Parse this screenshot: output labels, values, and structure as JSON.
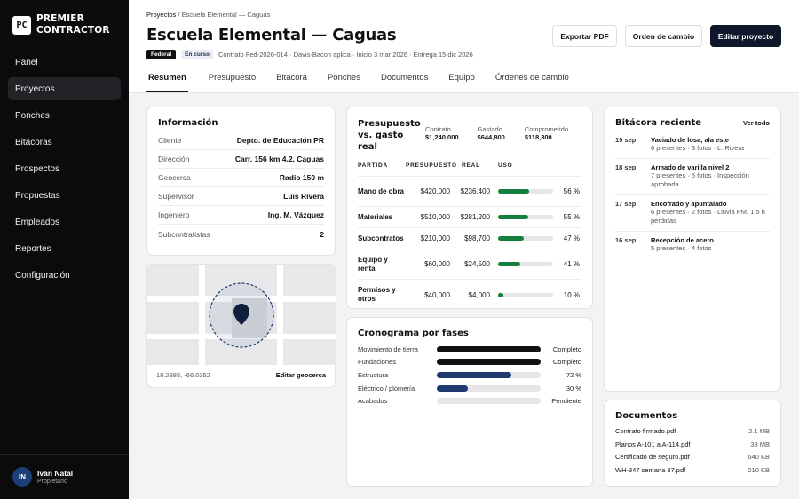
{
  "brand": {
    "logo": "PC",
    "line1": "PREMIER",
    "line2": "CONTRACTOR"
  },
  "sidebar": {
    "items": [
      {
        "label": "Panel"
      },
      {
        "label": "Proyectos",
        "active": true
      },
      {
        "label": "Ponches"
      },
      {
        "label": "Bitácoras"
      },
      {
        "label": "Prospectos"
      },
      {
        "label": "Propuestas"
      },
      {
        "label": "Empleados"
      },
      {
        "label": "Reportes"
      },
      {
        "label": "Configuración"
      }
    ],
    "user": {
      "initials": "IN",
      "name": "Iván Natal",
      "role": "Propietario"
    }
  },
  "header": {
    "breadcrumb": {
      "root": "Proyectos",
      "sep": " / ",
      "current": "Escuela Elemental — Caguas"
    },
    "title": "Escuela Elemental — Caguas",
    "badge_type": "Federal",
    "badge_status": "En curso",
    "meta": "Contrato Fed-2026-014 · Davis-Bacon aplica · Inicio 3 mar 2026 · Entrega 15 dic 2026",
    "buttons": {
      "export": "Exportar PDF",
      "change_order": "Orden de cambio",
      "edit": "Editar proyecto"
    },
    "tabs": [
      "Resumen",
      "Presupuesto",
      "Bitácora",
      "Ponches",
      "Documentos",
      "Equipo",
      "Órdenes de cambio"
    ]
  },
  "info": {
    "title": "Información",
    "rows": [
      {
        "k": "Cliente",
        "v": "Depto. de Educación PR"
      },
      {
        "k": "Dirección",
        "v": "Carr. 156 km 4.2, Caguas"
      },
      {
        "k": "Geocerca",
        "v": "Radio 150 m"
      },
      {
        "k": "Supervisor",
        "v": "Luis Rivera"
      },
      {
        "k": "Ingeniero",
        "v": "Ing. M. Vázquez"
      },
      {
        "k": "Subcontratistas",
        "v": "2"
      }
    ]
  },
  "map": {
    "coords": "18.2385, -66.0352",
    "edit": "Editar geocerca"
  },
  "budget": {
    "title": "Presupuesto vs. gasto real",
    "contract_label": "Contrato",
    "contract_value": "$1,240,000",
    "spent_label": "Gastado",
    "spent_value": "$644,800",
    "committed_label": "Comprometido",
    "committed_value": "$118,300",
    "columns": [
      "PARTIDA",
      "PRESUPUESTO",
      "REAL",
      "USO"
    ],
    "rows": [
      {
        "name": "Mano de obra",
        "budget": "$420,000",
        "real": "$236,400",
        "use": 56,
        "use_label": "56 %"
      },
      {
        "name": "Materiales",
        "budget": "$510,000",
        "real": "$281,200",
        "use": 55,
        "use_label": "55 %"
      },
      {
        "name": "Subcontratos",
        "budget": "$210,000",
        "real": "$98,700",
        "use": 47,
        "use_label": "47 %"
      },
      {
        "name": "Equipo y renta",
        "budget": "$60,000",
        "real": "$24,500",
        "use": 41,
        "use_label": "41 %"
      },
      {
        "name": "Permisos y otros",
        "budget": "$40,000",
        "real": "$4,000",
        "use": 10,
        "use_label": "10 %"
      }
    ],
    "bar_color": "#15803d"
  },
  "schedule": {
    "title": "Cronograma por fases",
    "rows": [
      {
        "name": "Movimiento de tierra",
        "progress": 100,
        "status": "Completo",
        "color": "#111111"
      },
      {
        "name": "Fundaciones",
        "progress": 100,
        "status": "Completo",
        "color": "#111111"
      },
      {
        "name": "Estructura",
        "progress": 72,
        "status": "72 %",
        "color": "#1e3a6e"
      },
      {
        "name": "Eléctrico / plomería",
        "progress": 30,
        "status": "30 %",
        "color": "#1e3a6e"
      },
      {
        "name": "Acabados",
        "progress": 0,
        "status": "Pendiente",
        "color": "#1e3a6e"
      }
    ]
  },
  "log": {
    "title": "Bitácora reciente",
    "link": "Ver todo",
    "items": [
      {
        "date": "19 sep",
        "title": "Vaciado de losa, ala este",
        "sub": "6 presentes · 3 fotos · L. Rivera"
      },
      {
        "date": "18 sep",
        "title": "Armado de varilla nivel 2",
        "sub": "7 presentes · 5 fotos · Inspección aprobada"
      },
      {
        "date": "17 sep",
        "title": "Encofrado y apuntalado",
        "sub": "6 presentes · 2 fotos · Lluvia PM, 1.5 h perdidas"
      },
      {
        "date": "16 sep",
        "title": "Recepción de acero",
        "sub": "5 presentes · 4 fotos"
      }
    ]
  },
  "docs": {
    "title": "Documentos",
    "items": [
      {
        "name": "Contrato firmado.pdf",
        "size": "2.1 MB"
      },
      {
        "name": "Planos A-101 a A-114.pdf",
        "size": "38 MB"
      },
      {
        "name": "Certificado de seguro.pdf",
        "size": "640 KB"
      },
      {
        "name": "WH-347 semana 37.pdf",
        "size": "210 KB"
      }
    ]
  }
}
